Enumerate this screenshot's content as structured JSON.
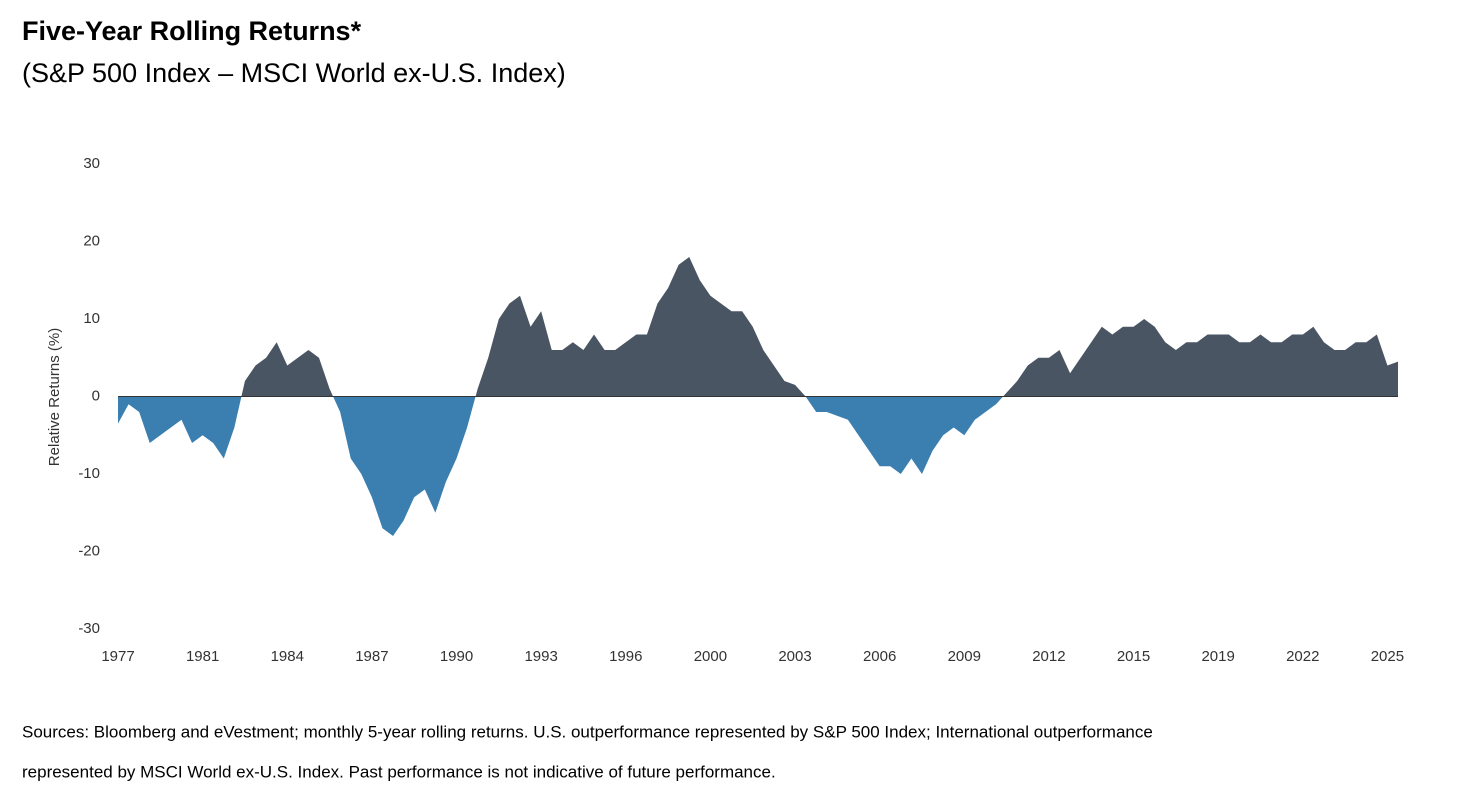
{
  "chart_data": {
    "type": "area",
    "title": "Five-Year Rolling Returns*",
    "subtitle": "(S&P 500 Index – MSCI World ex-U.S. Index)",
    "y_label": "Relative Returns (%)",
    "categories": [
      "1977",
      null,
      null,
      null,
      null,
      null,
      null,
      null,
      "1981",
      null,
      null,
      null,
      null,
      null,
      null,
      null,
      "1984",
      null,
      null,
      null,
      null,
      null,
      null,
      null,
      "1987",
      null,
      null,
      null,
      null,
      null,
      null,
      null,
      "1990",
      null,
      null,
      null,
      null,
      null,
      null,
      null,
      "1993",
      null,
      null,
      null,
      null,
      null,
      null,
      null,
      "1996",
      null,
      null,
      null,
      null,
      null,
      null,
      null,
      "2000",
      null,
      null,
      null,
      null,
      null,
      null,
      null,
      "2003",
      null,
      null,
      null,
      null,
      null,
      null,
      null,
      "2006",
      null,
      null,
      null,
      null,
      null,
      null,
      null,
      "2009",
      null,
      null,
      null,
      null,
      null,
      null,
      null,
      "2012",
      null,
      null,
      null,
      null,
      null,
      null,
      null,
      "2015",
      null,
      null,
      null,
      null,
      null,
      null,
      null,
      "2019",
      null,
      null,
      null,
      null,
      null,
      null,
      null,
      "2022",
      null,
      null,
      null,
      null,
      null,
      null,
      null,
      "2025",
      null
    ],
    "values": [
      -3.5,
      -1,
      -2,
      -6,
      -5,
      -4,
      -3,
      -6,
      -5,
      -6,
      -8,
      -4,
      2,
      4,
      5,
      7,
      4,
      5,
      6,
      5,
      1,
      -2,
      -8,
      -10,
      -13,
      -17,
      -18,
      -16,
      -13,
      -12,
      -15,
      -11,
      -8,
      -4,
      1,
      5,
      10,
      12,
      13,
      9,
      11,
      6,
      6,
      7,
      6,
      8,
      6,
      6,
      7,
      8,
      8,
      12,
      14,
      17,
      18,
      15,
      13,
      12,
      11,
      11,
      9,
      6,
      4,
      2,
      1.5,
      0,
      -2,
      -2,
      -2.5,
      -3,
      -5,
      -7,
      -9,
      -9,
      -10,
      -8,
      -10,
      -7,
      -5,
      -4,
      -5,
      -3,
      -2,
      -1,
      0.5,
      2,
      4,
      5,
      5,
      6,
      3,
      5,
      7,
      9,
      8,
      9,
      9,
      10,
      9,
      7,
      6,
      7,
      7,
      8,
      8,
      8,
      7,
      7,
      8,
      7,
      7,
      8,
      8,
      9,
      7,
      6,
      6,
      7,
      7,
      8,
      4,
      4.5
    ],
    "positive_color": "#4a5563",
    "negative_color": "#3a7fb0",
    "ylim": [
      -30,
      30
    ],
    "yticks": [
      -30,
      -20,
      -10,
      0,
      10,
      20,
      30
    ],
    "grid": false,
    "source": [
      "Sources: Bloomberg and eVestment; monthly 5-year rolling returns. U.S. outperformance represented by S&P 500 Index; International outperformance",
      "represented by MSCI World ex-U.S. Index. Past performance is not indicative of future performance."
    ]
  }
}
